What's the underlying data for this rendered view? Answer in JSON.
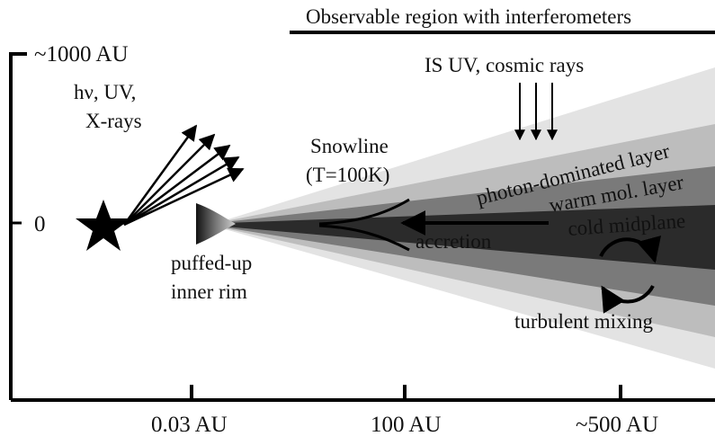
{
  "header": {
    "observable_region": "Observable region with interferometers"
  },
  "axes": {
    "y_top_label": "~1000 AU",
    "y_zero_label": "0",
    "x_ticks": [
      "0.03 AU",
      "100 AU",
      "~500 AU"
    ]
  },
  "labels": {
    "radiation_line1": "hν, UV,",
    "radiation_line2": "X-rays",
    "is_uv": "IS UV, cosmic rays",
    "snowline_line1": "Snowline",
    "snowline_line2": "(T=100K)",
    "photon_layer": "photon-dominated layer",
    "warm_layer": "warm mol. layer",
    "cold_midplane": "cold midplane",
    "accretion": "accretion",
    "inner_rim_line1": "puffed-up",
    "inner_rim_line2": "inner rim",
    "turbulent_mixing": "turbulent mixing"
  },
  "colors": {
    "outer_layer": "#e3e3e3",
    "photon_layer": "#bdbdbd",
    "warm_layer": "#7a7a7a",
    "midplane": "#2b2b2b",
    "ink": "#000000"
  },
  "icons": {
    "star": "star-icon",
    "mixing": "circular-arrows-icon"
  }
}
